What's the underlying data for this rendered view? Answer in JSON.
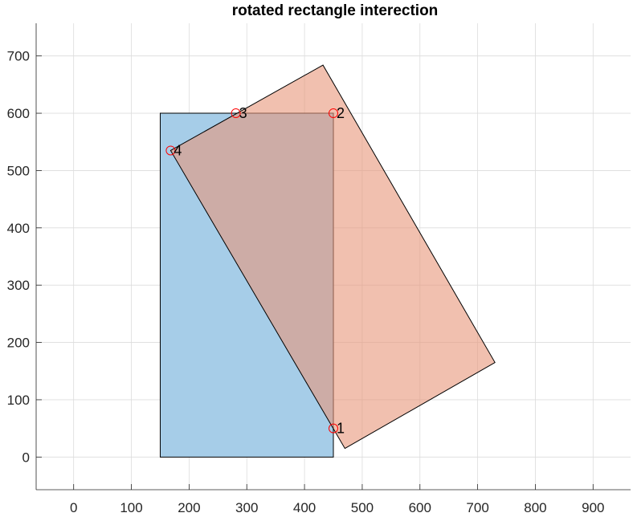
{
  "chart_data": {
    "type": "scatter",
    "title": "rotated rectangle interection",
    "xlim": [
      -65,
      965
    ],
    "ylim": [
      -57,
      757
    ],
    "xticks": [
      0,
      100,
      200,
      300,
      400,
      500,
      600,
      700,
      800,
      900
    ],
    "yticks": [
      0,
      100,
      200,
      300,
      400,
      500,
      600,
      700
    ],
    "grid": true,
    "polygons": [
      {
        "role": "axis-aligned rectangle",
        "color": "#A6CDE8",
        "vertices": [
          [
            150,
            0
          ],
          [
            450,
            0
          ],
          [
            450,
            600
          ],
          [
            150,
            600
          ]
        ]
      },
      {
        "role": "rotated rectangle",
        "color": "#E8967A",
        "opacity": 0.6,
        "vertices": [
          [
            470,
            15
          ],
          [
            730,
            165
          ],
          [
            432,
            684
          ],
          [
            168,
            535
          ]
        ]
      }
    ],
    "intersection_points": [
      {
        "label": "1",
        "x": 450,
        "y": 50
      },
      {
        "label": "2",
        "x": 450,
        "y": 600
      },
      {
        "label": "3",
        "x": 281,
        "y": 600
      },
      {
        "label": "4",
        "x": 168,
        "y": 535
      }
    ],
    "marker_color": "#FF0000"
  }
}
